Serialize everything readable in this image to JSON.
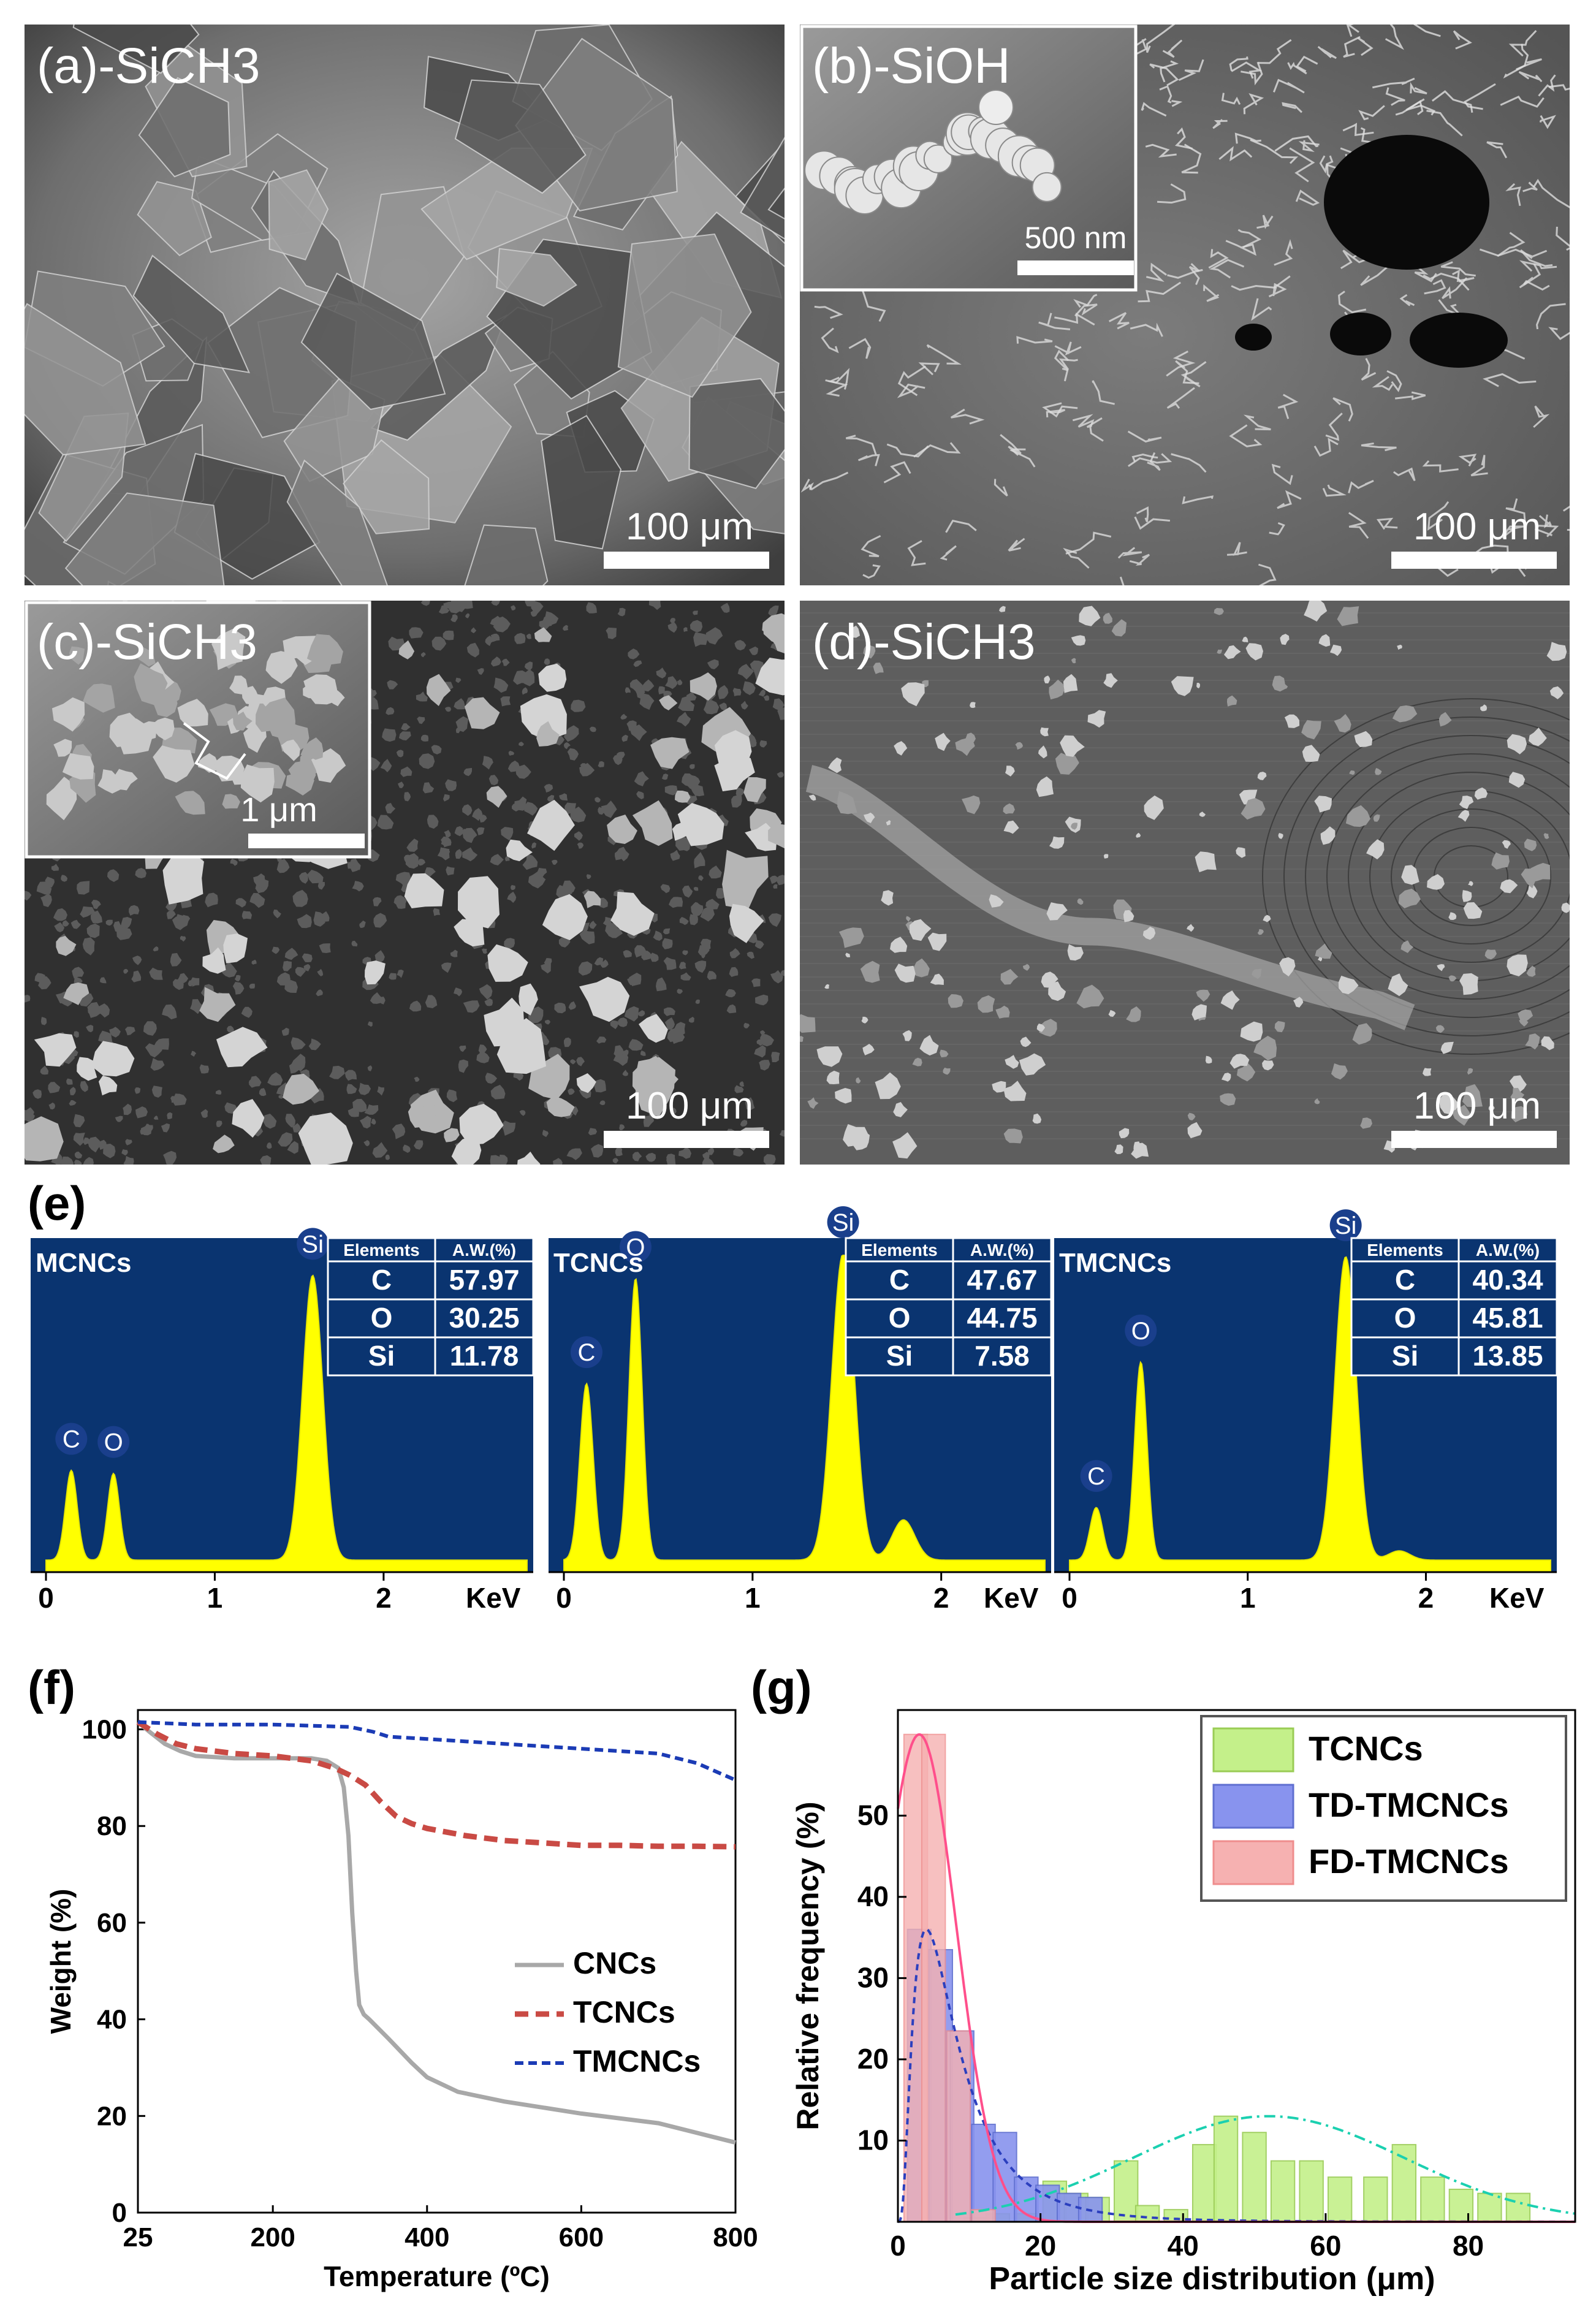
{
  "panels": {
    "a": {
      "label": "(a)-SiCH3",
      "scale": "100 μm"
    },
    "b": {
      "label": "(b)-SiOH",
      "scale": "100 μm",
      "inset_scale": "500 nm"
    },
    "c": {
      "label": "(c)-SiCH3",
      "scale": "100 μm",
      "inset_scale": "1 μm"
    },
    "d": {
      "label": "(d)-SiCH3",
      "scale": "100 μm"
    },
    "e": {
      "label": "(e)"
    },
    "f": {
      "label": "(f)"
    },
    "g": {
      "label": "(g)"
    }
  },
  "colors": {
    "sem_dark": "#2e2e2e",
    "sem_mid": "#7d7d7d",
    "sem_light": "#cfcfcf",
    "eds_bg": "#0a3470",
    "eds_peak": "#ffff00",
    "cncs": "#a8a8a8",
    "tcncs": "#c94a44",
    "tmcncs": "#1b3bb5",
    "hist_tcncs": "#c4f08a",
    "hist_td": "#8893ee",
    "hist_fd": "#f6b1b1",
    "fit_tcncs": "#1bd0b0",
    "fit_td": "#2b3fbe",
    "fit_fd": "#ff4f8b"
  },
  "chart_data": [
    {
      "type": "line",
      "panel": "e",
      "title": "MCNCs",
      "xlabel": "KeV",
      "xticks": [
        "0",
        "1",
        "2"
      ],
      "xlim": [
        0,
        2.85
      ],
      "peaks": [
        {
          "label": "C",
          "x": 0.15,
          "height": 0.29
        },
        {
          "label": "O",
          "x": 0.4,
          "height": 0.28
        },
        {
          "label": "Si",
          "x": 1.58,
          "height": 0.92
        }
      ],
      "table": {
        "headers": [
          "Elements",
          "A.W.(%)"
        ],
        "rows": [
          [
            "C",
            "57.97"
          ],
          [
            "O",
            "30.25"
          ],
          [
            "Si",
            "11.78"
          ]
        ]
      }
    },
    {
      "type": "line",
      "panel": "e",
      "title": "TCNCs",
      "xlabel": "KeV",
      "xticks": [
        "0",
        "1",
        "2"
      ],
      "xlim": [
        0,
        2.55
      ],
      "peaks": [
        {
          "label": "C",
          "x": 0.12,
          "height": 0.57
        },
        {
          "label": "O",
          "x": 0.38,
          "height": 0.91
        },
        {
          "label": "Si",
          "x": 1.48,
          "height": 0.99
        },
        {
          "label": "",
          "x": 1.8,
          "height": 0.13
        }
      ],
      "table": {
        "headers": [
          "Elements",
          "A.W.(%)"
        ],
        "rows": [
          [
            "C",
            "47.67"
          ],
          [
            "O",
            "44.75"
          ],
          [
            "Si",
            "7.58"
          ]
        ]
      }
    },
    {
      "type": "line",
      "panel": "e",
      "title": "TMCNCs",
      "xlabel": "KeV",
      "xticks": [
        "0",
        "1",
        "2"
      ],
      "xlim": [
        0,
        2.7
      ],
      "peaks": [
        {
          "label": "C",
          "x": 0.15,
          "height": 0.17
        },
        {
          "label": "O",
          "x": 0.4,
          "height": 0.64
        },
        {
          "label": "Si",
          "x": 1.55,
          "height": 0.98
        },
        {
          "label": "",
          "x": 1.85,
          "height": 0.03
        }
      ],
      "table": {
        "headers": [
          "Elements",
          "A.W.(%)"
        ],
        "rows": [
          [
            "C",
            "40.34"
          ],
          [
            "O",
            "45.81"
          ],
          [
            "Si",
            "13.85"
          ]
        ]
      }
    },
    {
      "type": "line",
      "panel": "f",
      "xlabel": "Temperature (ºC)",
      "ylabel": "Weight (%)",
      "xlim": [
        25,
        800
      ],
      "ylim": [
        0,
        104
      ],
      "xticks": [
        25,
        200,
        400,
        600,
        800
      ],
      "yticks": [
        0,
        20,
        40,
        60,
        80,
        100
      ],
      "legend": "center-right",
      "series": [
        {
          "name": "CNCs",
          "x": [
            25,
            40,
            60,
            80,
            100,
            150,
            200,
            250,
            270,
            285,
            292,
            298,
            303,
            308,
            312,
            318,
            325,
            350,
            380,
            400,
            440,
            500,
            600,
            700,
            750,
            800
          ],
          "y": [
            101.5,
            99.5,
            97,
            95.5,
            94.5,
            94,
            94,
            94,
            93.5,
            92,
            88,
            78,
            62,
            50,
            43,
            41,
            40,
            36,
            31,
            28,
            25,
            23,
            20.5,
            18.5,
            16.5,
            14.5
          ]
        },
        {
          "name": "TCNCs",
          "x": [
            25,
            50,
            75,
            100,
            150,
            200,
            250,
            280,
            300,
            320,
            340,
            360,
            380,
            400,
            450,
            500,
            550,
            600,
            650,
            700,
            750,
            800
          ],
          "y": [
            101.5,
            99,
            97,
            96,
            95,
            94.5,
            93.5,
            92,
            90.5,
            88.5,
            85,
            82,
            80.5,
            79.5,
            78,
            77,
            76.5,
            76,
            76,
            75.8,
            75.8,
            75.7
          ]
        },
        {
          "name": "TMCNCs",
          "x": [
            25,
            100,
            200,
            300,
            330,
            350,
            400,
            500,
            600,
            700,
            750,
            800
          ],
          "y": [
            101.5,
            101,
            101,
            100.5,
            99.5,
            98.5,
            98,
            97,
            96,
            95,
            93,
            89.5
          ]
        }
      ]
    },
    {
      "type": "bar",
      "panel": "g",
      "xlabel": "Particle size distribution (μm)",
      "ylabel": "Relative frequency (%)",
      "xlim": [
        0,
        95
      ],
      "ylim": [
        0,
        63
      ],
      "xticks": [
        0,
        20,
        40,
        60,
        80
      ],
      "yticks": [
        10,
        20,
        30,
        40,
        50
      ],
      "legend": "top-right",
      "bin_width": 3.3,
      "series": [
        {
          "name": "TCNCs",
          "centers": [
            11,
            14,
            18,
            22,
            25,
            28,
            32,
            35,
            39,
            43,
            46,
            50,
            54,
            58,
            62,
            67,
            71,
            75,
            79,
            83,
            87
          ],
          "values": [
            0.5,
            1,
            1,
            5,
            3.5,
            3,
            7.5,
            2,
            1.5,
            9.5,
            13,
            11,
            7.5,
            7.5,
            5.5,
            5.5,
            9.5,
            5.5,
            4,
            3.5,
            3.5
          ],
          "fit": {
            "mu": 52,
            "sigma": 19,
            "peak": 13,
            "style": "dash-dot"
          }
        },
        {
          "name": "TD-TMCNCs",
          "centers": [
            3,
            6,
            9,
            12,
            15,
            18,
            21,
            24,
            27
          ],
          "values": [
            36,
            33.5,
            23.5,
            12,
            11,
            5.5,
            4.5,
            3.5,
            3
          ],
          "fit": {
            "type": "lognormal",
            "mode": 4,
            "peak": 36,
            "style": "dash"
          }
        },
        {
          "name": "FD-TMCNCs",
          "centers": [
            2.5,
            5,
            8.5,
            12
          ],
          "values": [
            60,
            60,
            23.5,
            1.5
          ],
          "fit": {
            "mu": 3,
            "sigma": 5.2,
            "peak": 60,
            "style": "solid"
          }
        }
      ]
    }
  ]
}
